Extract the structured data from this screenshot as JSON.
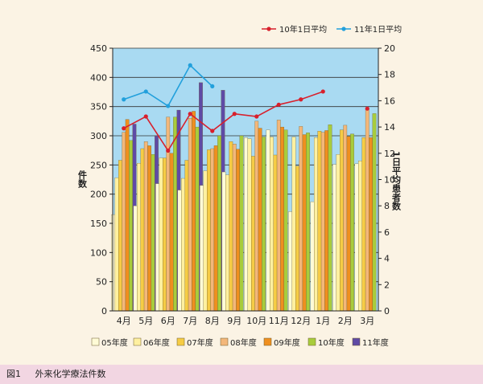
{
  "chart_data": {
    "type": "bar",
    "categories": [
      "4月",
      "5月",
      "6月",
      "7月",
      "8月",
      "9月",
      "10月",
      "11月",
      "12月",
      "1月",
      "2月",
      "3月"
    ],
    "y_left": {
      "label": "件数",
      "ylim": [
        0,
        450
      ],
      "ticks": [
        0,
        50,
        100,
        150,
        200,
        250,
        300,
        350,
        400,
        450
      ]
    },
    "y_right": {
      "label": "1日平均患者数",
      "ylim": [
        0,
        20
      ],
      "ticks": [
        0,
        2,
        4,
        6,
        8,
        10,
        12,
        14,
        16,
        18,
        20
      ]
    },
    "grid": true,
    "legend_bars_position": "bottom",
    "legend_lines_position": "top-right",
    "series": [
      {
        "name": "05年度",
        "color": "#fffbd6",
        "values": [
          165,
          180,
          218,
          207,
          215,
          238,
          297,
          310,
          170,
          187,
          251,
          252
        ]
      },
      {
        "name": "06年度",
        "color": "#fff0a0",
        "values": [
          228,
          253,
          262,
          227,
          240,
          233,
          295,
          298,
          298,
          297,
          268,
          257
        ]
      },
      {
        "name": "07年度",
        "color": "#f6cc45",
        "values": [
          258,
          278,
          262,
          258,
          276,
          290,
          265,
          267,
          248,
          308,
          310,
          297
        ]
      },
      {
        "name": "08年度",
        "color": "#f3b77a",
        "values": [
          306,
          290,
          332,
          330,
          278,
          286,
          325,
          327,
          316,
          306,
          318,
          345
        ]
      },
      {
        "name": "09年度",
        "color": "#ef8f1f",
        "values": [
          328,
          283,
          270,
          342,
          283,
          277,
          313,
          315,
          302,
          309,
          299,
          297
        ]
      },
      {
        "name": "10年度",
        "color": "#a8cc3c",
        "values": [
          292,
          268,
          332,
          315,
          300,
          300,
          298,
          310,
          305,
          319,
          303,
          338
        ]
      },
      {
        "name": "11年度",
        "color": "#5f4aa5",
        "values": [
          320,
          300,
          344,
          391,
          378,
          null,
          null,
          null,
          null,
          null,
          null,
          null
        ]
      }
    ],
    "line_series": [
      {
        "name": "10年1日平均",
        "color": "#d8202c",
        "values": [
          13.9,
          14.8,
          12.2,
          15.0,
          13.7,
          15.0,
          14.8,
          15.7,
          16.1,
          16.7,
          null,
          15.4
        ]
      },
      {
        "name": "11年1日平均",
        "color": "#22a0dc",
        "values": [
          16.1,
          16.7,
          15.6,
          18.7,
          17.1,
          null,
          null,
          null,
          null,
          null,
          null,
          null
        ]
      }
    ]
  },
  "caption": {
    "fig": "図1",
    "title": "外来化学療法件数"
  },
  "colors": {
    "plot_bg": "#a9daf2",
    "page_bg": "#fbf3e4",
    "caption_bg": "#f2d6e2"
  }
}
